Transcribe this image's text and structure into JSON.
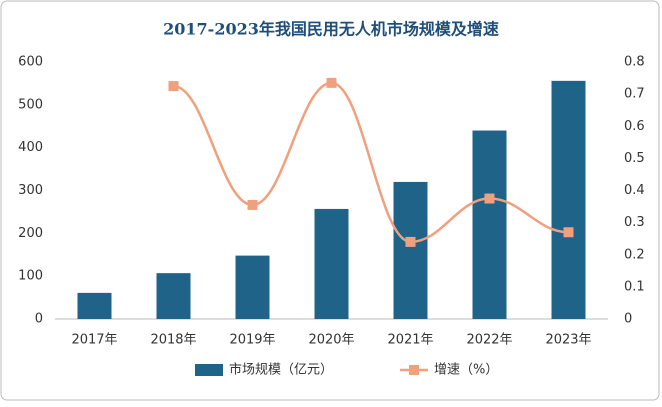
{
  "chart_data": {
    "type": "bar",
    "title": "2017-2023年我国民用无人机市场规模及增速",
    "categories": [
      "2017年",
      "2018年",
      "2019年",
      "2020年",
      "2021年",
      "2022年",
      "2023年"
    ],
    "series": [
      {
        "name": "市场规模（亿元）",
        "type": "bar",
        "color": "#1f6389",
        "values": [
          61,
          107,
          148,
          257,
          320,
          440,
          556
        ]
      },
      {
        "name": "增速（%）",
        "type": "line",
        "axis": "y2",
        "color": "#f0a07c",
        "values": [
          null,
          0.725,
          0.355,
          0.735,
          0.24,
          0.375,
          0.27
        ]
      }
    ],
    "ylim": [
      0,
      600
    ],
    "yticks": [
      0,
      100,
      200,
      300,
      400,
      500,
      600
    ],
    "y2lim": [
      0,
      0.8
    ],
    "y2ticks": [
      0,
      0.1,
      0.2,
      0.3,
      0.4,
      0.5,
      0.6,
      0.7,
      0.8
    ],
    "grid": false,
    "legend": "bottom"
  }
}
